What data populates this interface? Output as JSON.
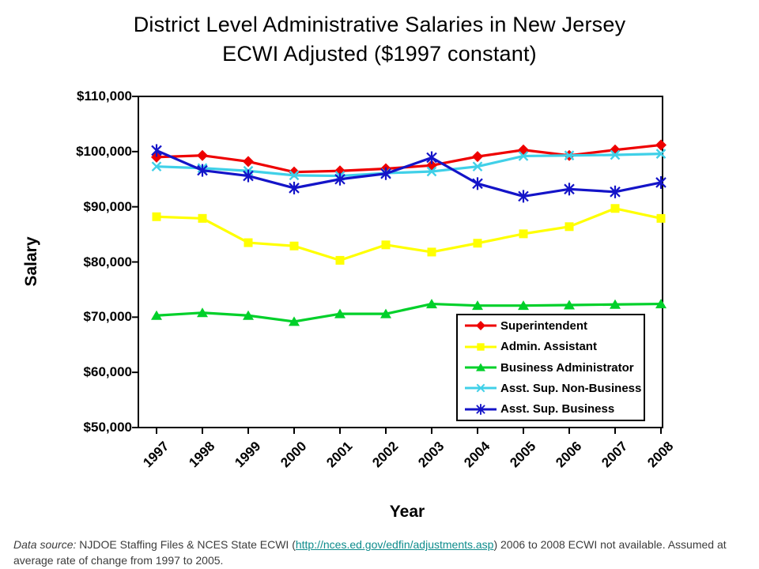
{
  "title": {
    "line1": "District Level Administrative Salaries in New Jersey",
    "line2": "ECWI Adjusted ($1997 constant)"
  },
  "chart_data": {
    "type": "line",
    "title": "District Level Administrative Salaries in New Jersey ECWI Adjusted ($1997 constant)",
    "xlabel": "Year",
    "ylabel": "Salary",
    "x": [
      1997,
      1998,
      1999,
      2000,
      2001,
      2002,
      2003,
      2004,
      2005,
      2006,
      2007,
      2008
    ],
    "xtick_labels": [
      "1997",
      "1998",
      "1999",
      "2000",
      "2001",
      "2002",
      "2003",
      "2004",
      "2005",
      "2006",
      "2007",
      "2008"
    ],
    "ylim": [
      50000,
      110000
    ],
    "ytick_step": 10000,
    "ytick_labels_top_to_bottom": [
      "$110,000",
      "$100,000",
      "$90,000",
      "$80,000",
      "$70,000",
      "$60,000",
      "$50,000"
    ],
    "grid": false,
    "legend_position": "inside-bottom-right",
    "series": [
      {
        "name": "Superintendent",
        "color": "#EE0000",
        "marker": "diamond",
        "values": [
          99000,
          99300,
          98200,
          96300,
          96500,
          96900,
          97500,
          99100,
          100300,
          99300,
          100300,
          101200
        ]
      },
      {
        "name": "Admin. Assistant",
        "color": "#FFFF00",
        "marker": "square",
        "values": [
          88200,
          87900,
          83500,
          82900,
          80300,
          83100,
          81800,
          83400,
          85100,
          86400,
          89700,
          87900
        ]
      },
      {
        "name": "Business Administrator",
        "color": "#00D02A",
        "marker": "triangle",
        "values": [
          70300,
          70800,
          70300,
          69200,
          70600,
          70600,
          72400,
          72100,
          72100,
          72200,
          72300,
          72400
        ]
      },
      {
        "name": "Asst. Sup. Non-Business",
        "color": "#40D0E8",
        "marker": "x",
        "values": [
          97300,
          97000,
          96500,
          95700,
          95600,
          96100,
          96400,
          97300,
          99200,
          99300,
          99400,
          99600
        ]
      },
      {
        "name": "Asst. Sup. Business",
        "color": "#1414C8",
        "marker": "asterisk",
        "values": [
          100200,
          96600,
          95600,
          93400,
          95000,
          96000,
          98900,
          94200,
          91900,
          93200,
          92700,
          94400
        ]
      }
    ]
  },
  "footer": {
    "prefix_italic": "Data source:",
    "text_before_link": " NJDOE Staffing Files & NCES State ECWI (",
    "link_text": "http://nces.ed.gov/edfin/adjustments.asp",
    "text_after_link": ") 2006 to 2008 ECWI not available. Assumed at average rate of change from 1997 to 2005.",
    "link_color": "#0E8C8C"
  }
}
